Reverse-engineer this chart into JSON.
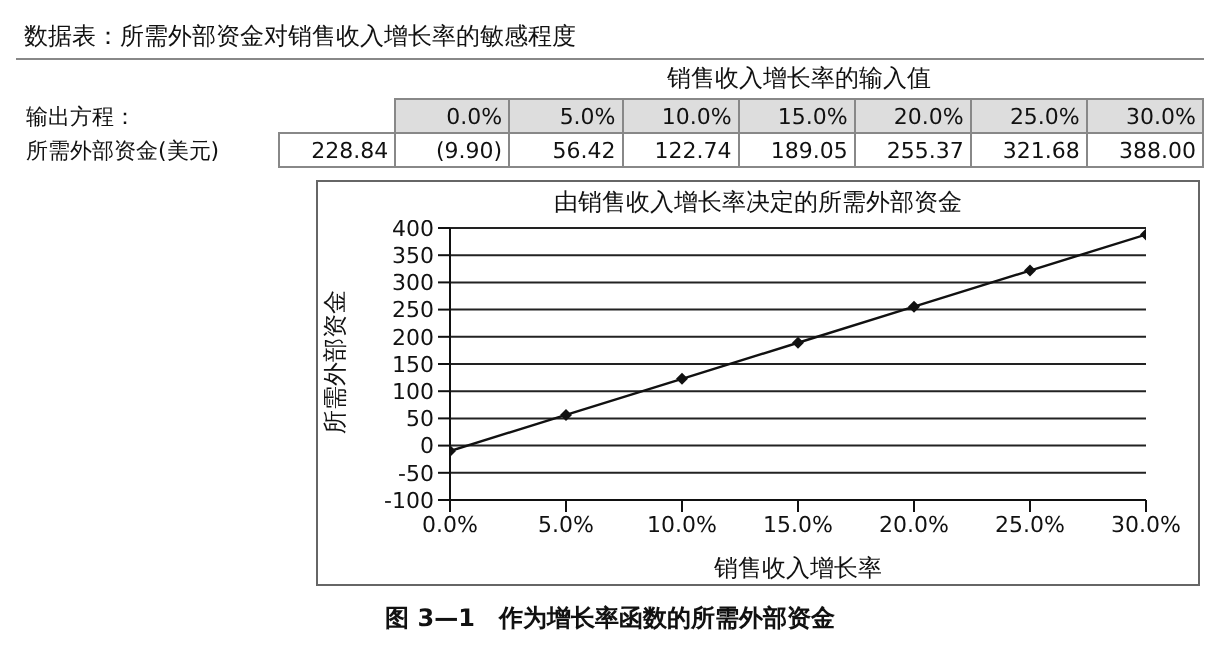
{
  "chart_data": {
    "type": "line",
    "title": "由销售收入增长率决定的所需外部资金",
    "subtitle": "数据表：所需外部资金对销售收入增长率的敏感程度",
    "xlabel": "销售收入增长率",
    "ylabel": "所需外部资金",
    "annotations": [
      "销售收入增长率的输入值",
      "输出方程：",
      "所需外部资金(美元)",
      "228.84",
      "图 3—1　作为增长率函数的所需外部资金",
      "(9.90)",
      "56.42",
      "122.74",
      "189.05",
      "255.37",
      "321.68",
      "388.00"
    ],
    "x": [
      0,
      5,
      10,
      15,
      20,
      25,
      30
    ],
    "series": [
      {
        "color": "#111111",
        "values": [
          -9.9,
          56.42,
          122.74,
          189.05,
          255.37,
          321.68,
          388.0
        ]
      }
    ],
    "xlim": [
      0,
      30
    ],
    "xticks": [
      {
        "value": 0,
        "label": "0.0%"
      },
      {
        "value": 5,
        "label": "5.0%"
      },
      {
        "value": 10,
        "label": "10.0%"
      },
      {
        "value": 15,
        "label": "15.0%"
      },
      {
        "value": 20,
        "label": "20.0%"
      },
      {
        "value": 25,
        "label": "25.0%"
      },
      {
        "value": 30,
        "label": "30.0%"
      }
    ],
    "ylim": [
      -100,
      400
    ],
    "yticks": [
      -100,
      -50,
      0,
      50,
      100,
      150,
      200,
      250,
      300,
      350,
      400
    ],
    "grid": "y",
    "marker": "diamond",
    "line_style": "solid",
    "legend": false
  }
}
